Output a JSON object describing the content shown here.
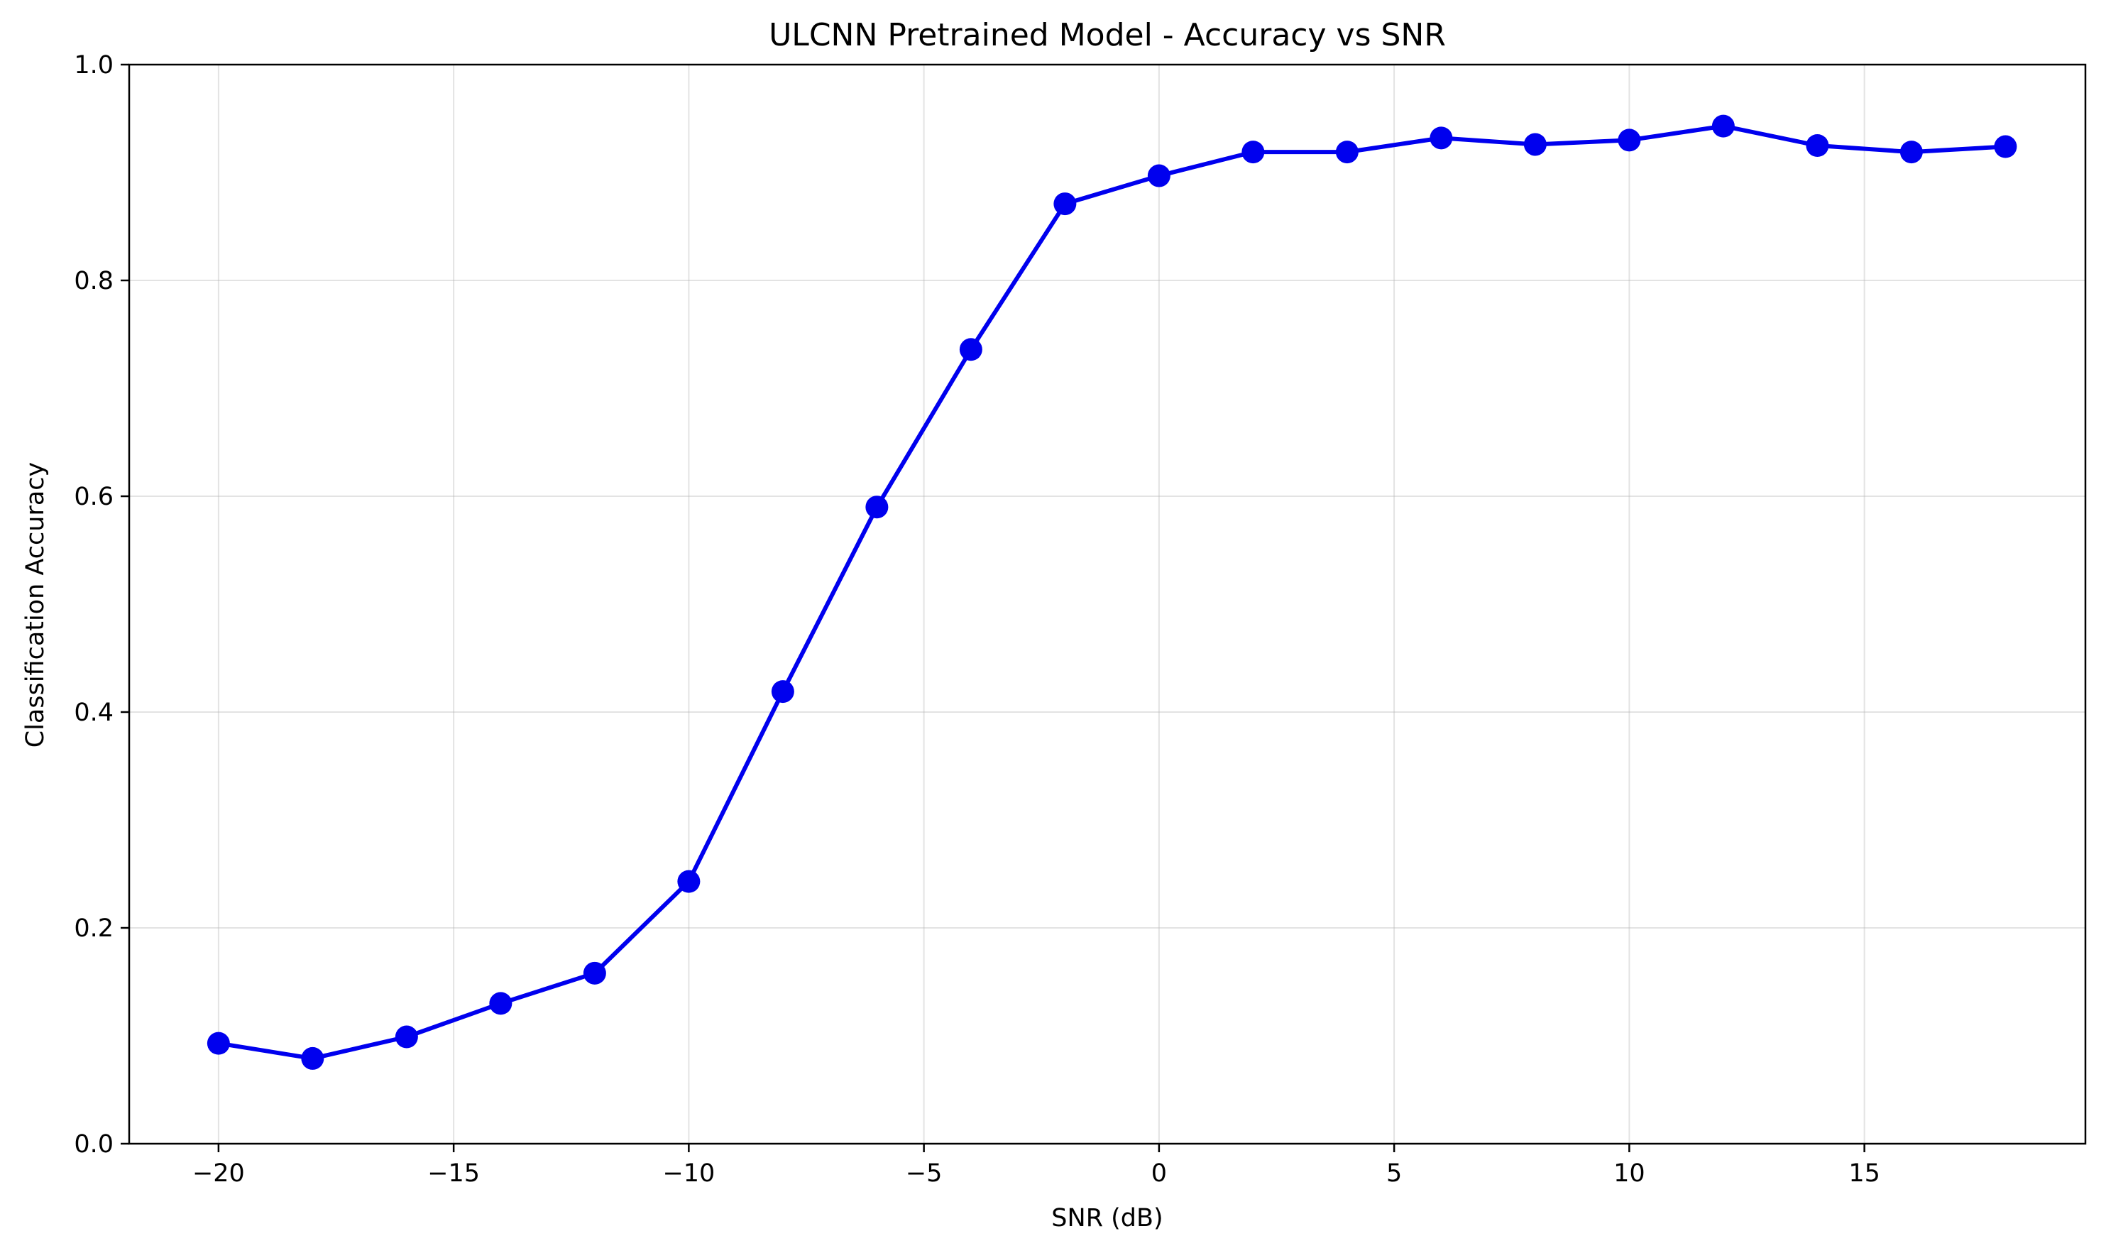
{
  "chart_data": {
    "type": "line",
    "title": "ULCNN Pretrained Model - Accuracy vs SNR",
    "xlabel": "SNR (dB)",
    "ylabel": "Classification Accuracy",
    "xlim": [
      -21.9,
      19.7
    ],
    "ylim": [
      0.0,
      1.0
    ],
    "xticks": [
      -20,
      -15,
      -10,
      -5,
      0,
      5,
      10,
      15
    ],
    "xtick_labels": [
      "−20",
      "−15",
      "−10",
      "−5",
      "0",
      "5",
      "10",
      "15"
    ],
    "yticks": [
      0.0,
      0.2,
      0.4,
      0.6,
      0.8,
      1.0
    ],
    "ytick_labels": [
      "0.0",
      "0.2",
      "0.4",
      "0.6",
      "0.8",
      "1.0"
    ],
    "grid": true,
    "series": [
      {
        "color": "#0000ee",
        "marker": "circle",
        "x": [
          -20,
          -18,
          -16,
          -14,
          -12,
          -10,
          -8,
          -6,
          -4,
          -2,
          0,
          2,
          4,
          6,
          8,
          10,
          12,
          14,
          16,
          18
        ],
        "y": [
          0.093,
          0.079,
          0.099,
          0.13,
          0.158,
          0.243,
          0.419,
          0.59,
          0.736,
          0.871,
          0.897,
          0.919,
          0.919,
          0.932,
          0.926,
          0.93,
          0.943,
          0.925,
          0.919,
          0.924
        ]
      }
    ]
  }
}
